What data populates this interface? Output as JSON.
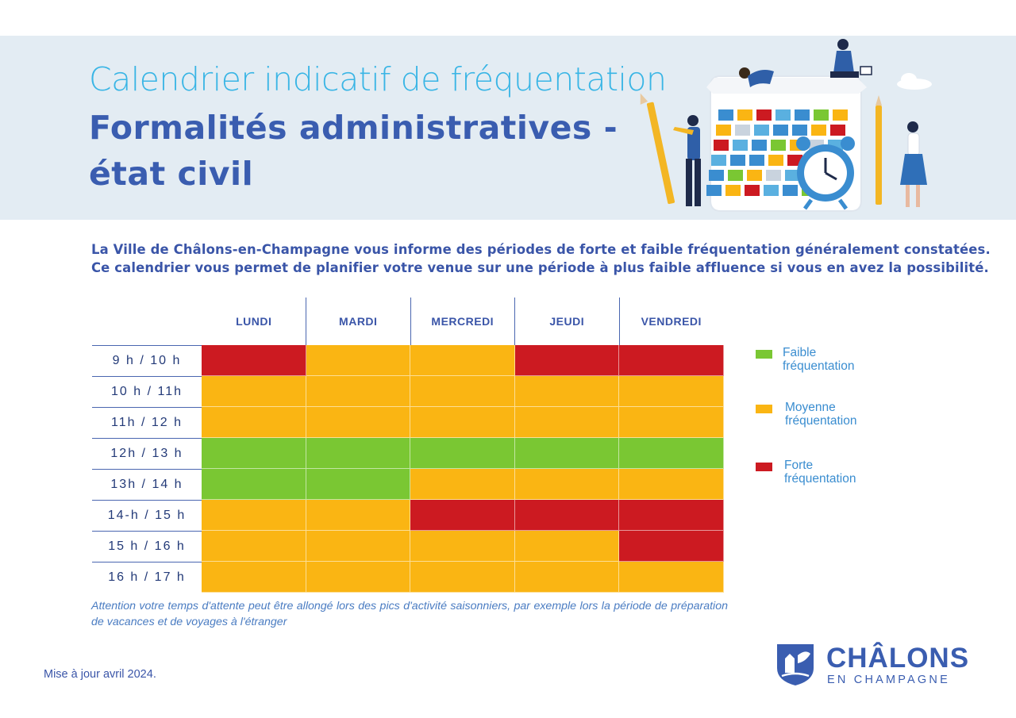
{
  "header": {
    "title_line1": "Calendrier indicatif de fréquentation",
    "title_line2": "Formalités administratives -",
    "title_line3": "état civil"
  },
  "intro": {
    "line1": "La Ville de Châlons-en-Champagne vous informe des périodes de forte et faible fréquentation généralement constatées.",
    "line2": "Ce calendrier vous permet de planifier votre venue sur une période à plus faible affluence si vous en avez la possibilité."
  },
  "days": [
    "LUNDI",
    "MARDI",
    "MERCREDI",
    "JEUDI",
    "VENDREDI"
  ],
  "hours": [
    "9 h / 10 h",
    "10 h / 11h",
    "11h / 12 h",
    "12h / 13 h",
    "13h / 14 h",
    "14-h / 15 h",
    "15 h / 16 h",
    "16 h / 17 h"
  ],
  "levels": {
    "faible": "#7ac733",
    "moyenne": "#fab513",
    "forte": "#cc1a21"
  },
  "chart_data": {
    "type": "heatmap",
    "title": "Calendrier indicatif de fréquentation",
    "x": [
      "LUNDI",
      "MARDI",
      "MERCREDI",
      "JEUDI",
      "VENDREDI"
    ],
    "y": [
      "9 h / 10 h",
      "10 h / 11h",
      "11h / 12 h",
      "12h / 13 h",
      "13h / 14 h",
      "14-h / 15 h",
      "15 h / 16 h",
      "16 h / 17 h"
    ],
    "values": [
      [
        "forte",
        "moyenne",
        "moyenne",
        "forte",
        "forte"
      ],
      [
        "moyenne",
        "moyenne",
        "moyenne",
        "moyenne",
        "moyenne"
      ],
      [
        "moyenne",
        "moyenne",
        "moyenne",
        "moyenne",
        "moyenne"
      ],
      [
        "faible",
        "faible",
        "faible",
        "faible",
        "faible"
      ],
      [
        "faible",
        "faible",
        "moyenne",
        "moyenne",
        "moyenne"
      ],
      [
        "moyenne",
        "moyenne",
        "forte",
        "forte",
        "forte"
      ],
      [
        "moyenne",
        "moyenne",
        "moyenne",
        "moyenne",
        "forte"
      ],
      [
        "moyenne",
        "moyenne",
        "moyenne",
        "moyenne",
        "moyenne"
      ]
    ]
  },
  "legend": {
    "faible": {
      "line1": "Faible",
      "line2": "fréquentation"
    },
    "moyenne": {
      "line1": "Moyenne",
      "line2": "fréquentation"
    },
    "forte": {
      "line1": "Forte",
      "line2": "fréquentation"
    }
  },
  "note": "Attention votre temps d'attente peut être allongé lors des pics d'activité saisonniers, par exemple lors la période de préparation de vacances et de voyages à l'étranger",
  "footer": {
    "update": "Mise à jour avril 2024.",
    "logo_main": "CHÂLONS",
    "logo_sub": "EN CHAMPAGNE"
  }
}
